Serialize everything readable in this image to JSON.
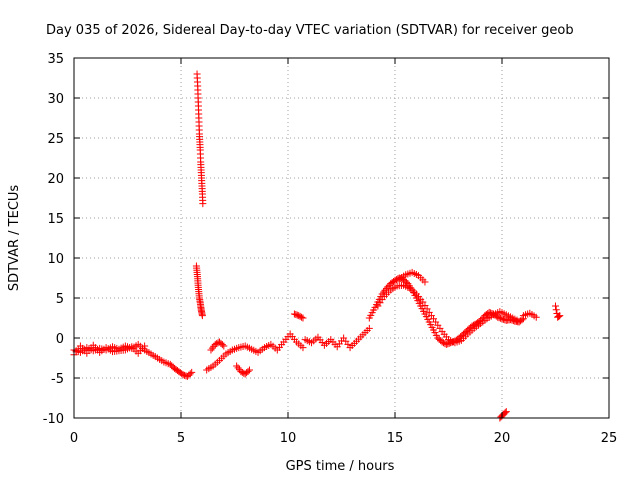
{
  "chart_data": {
    "type": "scatter",
    "title": "Day 035 of 2026, Sidereal Day-to-day VTEC variation (SDTVAR) for receiver geob",
    "xlabel": "GPS time / hours",
    "ylabel": "SDTVAR / TECUs",
    "xlim": [
      0,
      25
    ],
    "ylim": [
      -10,
      35
    ],
    "x_ticks": [
      0,
      5,
      10,
      15,
      20,
      25
    ],
    "x_tick_labels": [
      "0",
      "5",
      "10",
      "15",
      "20",
      "25"
    ],
    "y_ticks": [
      -10,
      -5,
      0,
      5,
      10,
      15,
      20,
      25,
      30,
      35
    ],
    "y_tick_labels": [
      "-10",
      "-5",
      "0",
      "5",
      "10",
      "15",
      "20",
      "25",
      "30",
      "35"
    ],
    "grid": true,
    "marker": "+",
    "color": "#ff0000",
    "series": [
      {
        "name": "SDTVAR",
        "segments": [
          {
            "x": [
              0.0,
              0.3,
              0.6,
              0.9,
              1.2,
              1.5,
              1.8,
              2.1,
              2.4,
              2.7,
              3.0,
              3.3,
              3.6,
              3.9,
              4.2,
              4.5,
              4.7,
              4.9,
              5.1,
              5.3,
              5.5
            ],
            "y": [
              -1.5,
              -1.8,
              -1.2,
              -1.6,
              -1.3,
              -1.5,
              -1.1,
              -1.4,
              -1.0,
              -1.3,
              -0.8,
              -1.5,
              -2.0,
              -2.5,
              -3.0,
              -3.3,
              -3.8,
              -4.2,
              -4.6,
              -4.8,
              -4.3
            ]
          },
          {
            "x": [
              0.0,
              0.3,
              0.6,
              0.9,
              1.2,
              1.5,
              1.8,
              2.1,
              2.4,
              2.7,
              3.0,
              3.3
            ],
            "y": [
              -2.1,
              -1.0,
              -1.9,
              -0.9,
              -1.8,
              -1.2,
              -1.7,
              -1.6,
              -1.5,
              -1.1,
              -1.9,
              -1.0
            ]
          },
          {
            "x": [
              5.75,
              5.78,
              5.8,
              5.82,
              5.84,
              5.86,
              5.88,
              5.9,
              5.92,
              5.94,
              5.96,
              5.98,
              6.0,
              6.02
            ],
            "y": [
              33.0,
              31.5,
              30.0,
              28.5,
              27.0,
              25.5,
              24.5,
              23.5,
              22.0,
              21.0,
              20.0,
              19.0,
              18.0,
              16.8
            ]
          },
          {
            "x": [
              5.72,
              5.75,
              5.78,
              5.8,
              5.83,
              5.86,
              5.9,
              5.93,
              5.96,
              6.0
            ],
            "y": [
              9.0,
              8.2,
              7.4,
              6.6,
              5.8,
              5.0,
              4.4,
              3.8,
              3.3,
              2.8
            ]
          },
          {
            "x": [
              6.2,
              6.5,
              6.8,
              7.1,
              7.4,
              7.7,
              8.0,
              8.3,
              8.6,
              8.9,
              9.2,
              9.5,
              9.8,
              10.1,
              10.4,
              10.7
            ],
            "y": [
              -4.0,
              -3.5,
              -2.8,
              -2.0,
              -1.5,
              -1.2,
              -1.0,
              -1.4,
              -1.8,
              -1.2,
              -0.8,
              -1.5,
              -0.5,
              0.5,
              -0.5,
              -1.2
            ]
          },
          {
            "x": [
              7.6,
              7.8,
              8.0,
              8.2
            ],
            "y": [
              -3.5,
              -4.2,
              -4.5,
              -4.0
            ]
          },
          {
            "x": [
              6.4,
              6.6,
              6.8,
              7.0
            ],
            "y": [
              -1.5,
              -0.8,
              -0.5,
              -1.0
            ]
          },
          {
            "x": [
              10.3,
              10.5,
              10.7
            ],
            "y": [
              3.0,
              2.8,
              2.5
            ]
          },
          {
            "x": [
              10.8,
              11.1,
              11.4,
              11.7,
              12.0,
              12.3,
              12.6,
              12.9,
              13.2,
              13.5,
              13.8
            ],
            "y": [
              -0.2,
              -0.6,
              0.1,
              -0.9,
              -0.2,
              -1.1,
              0.0,
              -1.2,
              -0.4,
              0.4,
              1.2
            ]
          },
          {
            "x": [
              13.8,
              14.0,
              14.2,
              14.4,
              14.6,
              14.8,
              15.0,
              15.2,
              15.4,
              15.6,
              15.8,
              16.0,
              16.2,
              16.4,
              16.6,
              16.8,
              17.0,
              17.2,
              17.4,
              17.6,
              17.8,
              18.0,
              18.2,
              18.4,
              18.6,
              18.8,
              19.0,
              19.2,
              19.4,
              19.6,
              19.8,
              20.0,
              20.2,
              20.4,
              20.6,
              20.8,
              21.0
            ],
            "y": [
              2.5,
              3.5,
              4.5,
              5.5,
              6.2,
              6.8,
              7.2,
              7.5,
              7.3,
              6.8,
              6.0,
              5.0,
              4.0,
              3.0,
              2.0,
              1.0,
              0.0,
              -0.5,
              -0.8,
              -0.6,
              -0.4,
              0.0,
              0.5,
              1.0,
              1.5,
              1.8,
              2.2,
              2.8,
              3.2,
              3.0,
              2.6,
              2.4,
              2.2,
              2.3,
              2.1,
              2.0,
              2.4
            ]
          },
          {
            "x": [
              14.2,
              14.5,
              14.8,
              15.1,
              15.4,
              15.7,
              16.0,
              16.3,
              16.6,
              16.9,
              17.2,
              17.5,
              17.8,
              18.1,
              18.4,
              18.7,
              19.0,
              19.3,
              19.6,
              19.9,
              20.2,
              20.5,
              20.8
            ],
            "y": [
              4.0,
              5.2,
              6.0,
              6.5,
              6.6,
              6.2,
              5.5,
              4.5,
              3.2,
              2.0,
              0.8,
              -0.2,
              -0.6,
              -0.3,
              0.5,
              1.2,
              1.8,
              2.4,
              2.9,
              3.3,
              2.9,
              2.5,
              2.1
            ]
          },
          {
            "x": [
              15.2,
              15.5,
              15.8,
              16.1,
              16.4
            ],
            "y": [
              7.4,
              7.9,
              8.2,
              7.8,
              7.0
            ]
          },
          {
            "x": [
              21.0,
              21.3,
              21.6
            ],
            "y": [
              2.8,
              3.1,
              2.6
            ]
          },
          {
            "x": [
              22.5,
              22.6,
              22.7
            ],
            "y": [
              4.0,
              2.6,
              2.8
            ]
          },
          {
            "x": [
              19.9,
              20.05,
              20.2
            ],
            "y": [
              -10.0,
              -9.6,
              -9.2
            ]
          }
        ]
      }
    ]
  }
}
